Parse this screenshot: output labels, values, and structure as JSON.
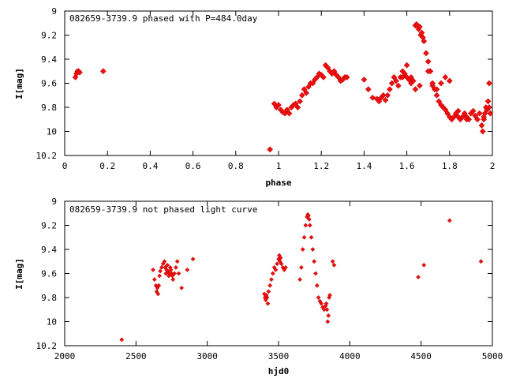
{
  "chart_data": [
    {
      "type": "scatter",
      "title": "082659-3739.9 phased with P=484.0day",
      "xlabel": "phase",
      "ylabel": "I[mag]",
      "xlim": [
        0,
        2
      ],
      "ylim": [
        10.2,
        9
      ],
      "y_inverted": true,
      "grid": false,
      "color": "#ee1111",
      "marker": "diamond-cross",
      "x_ticks": [
        "0",
        "0.2",
        "0.4",
        "0.6",
        "0.8",
        "1",
        "1.2",
        "1.4",
        "1.6",
        "1.8",
        "2"
      ],
      "y_ticks": [
        "9",
        "9.2",
        "9.4",
        "9.6",
        "9.8",
        "10",
        "10.2"
      ],
      "series": [
        {
          "x": [
            0.05,
            0.055,
            0.06,
            0.065,
            0.07,
            0.18,
            0.96,
            0.98,
            0.99,
            1.0,
            1.01,
            1.02,
            1.03,
            1.04,
            1.05,
            1.06,
            1.07,
            1.08,
            1.09,
            1.1,
            1.11,
            1.12,
            1.13,
            1.14,
            1.15,
            1.16,
            1.17,
            1.18,
            1.19,
            1.2,
            1.21,
            1.22,
            1.23,
            1.24,
            1.25,
            1.26,
            1.27,
            1.28,
            1.29,
            1.3,
            1.31,
            1.32,
            1.4,
            1.42,
            1.44,
            1.46,
            1.47,
            1.48,
            1.49,
            1.5,
            1.51,
            1.52,
            1.53,
            1.54,
            1.55,
            1.56,
            1.57,
            1.58,
            1.59,
            1.6,
            1.61,
            1.62,
            1.63,
            1.64,
            1.645,
            1.65,
            1.655,
            1.66,
            1.665,
            1.67,
            1.675,
            1.68,
            1.69,
            1.7,
            1.71,
            1.72,
            1.73,
            1.74,
            1.75,
            1.76,
            1.77,
            1.78,
            1.79,
            1.8,
            1.81,
            1.82,
            1.83,
            1.84,
            1.85,
            1.86,
            1.87,
            1.88,
            1.89,
            1.9,
            1.91,
            1.92,
            1.93,
            1.94,
            1.95,
            1.955,
            1.96,
            1.965,
            1.97,
            1.975,
            1.98,
            1.985,
            1.99,
            1.58,
            1.6,
            1.62,
            1.64,
            1.66,
            1.7,
            1.72,
            1.74,
            1.76,
            1.78,
            1.8,
            1.84,
            1.88,
            1.92,
            1.96,
            1.985
          ],
          "y": [
            9.55,
            9.52,
            9.5,
            9.5,
            9.51,
            9.5,
            10.15,
            9.77,
            9.8,
            9.78,
            9.82,
            9.84,
            9.85,
            9.82,
            9.85,
            9.8,
            9.78,
            9.77,
            9.8,
            9.75,
            9.7,
            9.65,
            9.68,
            9.63,
            9.6,
            9.6,
            9.57,
            9.55,
            9.52,
            9.53,
            9.55,
            9.45,
            9.47,
            9.5,
            9.52,
            9.5,
            9.53,
            9.55,
            9.58,
            9.57,
            9.55,
            9.55,
            9.57,
            9.65,
            9.72,
            9.73,
            9.75,
            9.72,
            9.7,
            9.74,
            9.7,
            9.65,
            9.6,
            9.55,
            9.58,
            9.62,
            9.55,
            9.5,
            9.52,
            9.55,
            9.57,
            9.55,
            9.58,
            9.12,
            9.11,
            9.12,
            9.15,
            9.13,
            9.2,
            9.18,
            9.22,
            9.25,
            9.35,
            9.42,
            9.5,
            9.6,
            9.65,
            9.7,
            9.75,
            9.78,
            9.8,
            9.82,
            9.85,
            9.88,
            9.9,
            9.88,
            9.85,
            9.88,
            9.9,
            9.88,
            9.85,
            9.88,
            9.9,
            9.85,
            9.83,
            9.87,
            9.9,
            9.85,
            9.95,
            10.0,
            9.9,
            9.85,
            9.8,
            9.82,
            9.75,
            9.8,
            9.85,
            9.55,
            9.45,
            9.6,
            9.65,
            9.62,
            9.5,
            9.62,
            9.65,
            9.6,
            9.55,
            9.58,
            9.83,
            9.9,
            9.87,
            9.88,
            9.6
          ]
        }
      ]
    },
    {
      "type": "scatter",
      "title": "082659-3739.9 not phased light curve",
      "xlabel": "hjd0",
      "ylabel": "I[mag]",
      "xlim": [
        2000,
        5000
      ],
      "ylim": [
        10.2,
        9
      ],
      "y_inverted": true,
      "grid": false,
      "color": "#ee1111",
      "marker": "diamond",
      "x_ticks": [
        "2000",
        "2500",
        "3000",
        "3500",
        "4000",
        "4500",
        "5000"
      ],
      "y_ticks": [
        "9",
        "9.2",
        "9.4",
        "9.6",
        "9.8",
        "10",
        "10.2"
      ],
      "series": [
        {
          "x": [
            2400,
            2620,
            2630,
            2640,
            2645,
            2650,
            2655,
            2660,
            2665,
            2670,
            2680,
            2690,
            2700,
            2705,
            2710,
            2715,
            2720,
            2725,
            2730,
            2735,
            2740,
            2745,
            2750,
            2755,
            2760,
            2770,
            2780,
            2790,
            2800,
            2820,
            2860,
            2900,
            3400,
            3405,
            3410,
            3415,
            3420,
            3425,
            3430,
            3440,
            3450,
            3460,
            3470,
            3480,
            3490,
            3500,
            3505,
            3510,
            3515,
            3520,
            3530,
            3540,
            3550,
            3650,
            3660,
            3670,
            3680,
            3690,
            3700,
            3705,
            3710,
            3715,
            3720,
            3730,
            3740,
            3750,
            3760,
            3770,
            3780,
            3790,
            3800,
            3810,
            3820,
            3830,
            3835,
            3840,
            3845,
            3850,
            3855,
            3860,
            3880,
            3890,
            4480,
            4520,
            4700,
            4920
          ],
          "y": [
            10.15,
            9.57,
            9.65,
            9.7,
            9.75,
            9.72,
            9.77,
            9.7,
            9.62,
            9.58,
            9.55,
            9.52,
            9.5,
            9.55,
            9.6,
            9.57,
            9.53,
            9.58,
            9.62,
            9.6,
            9.55,
            9.57,
            9.6,
            9.62,
            9.65,
            9.6,
            9.55,
            9.5,
            9.6,
            9.72,
            9.57,
            9.48,
            9.77,
            9.8,
            9.82,
            9.78,
            9.8,
            9.85,
            9.75,
            9.7,
            9.65,
            9.6,
            9.55,
            9.57,
            9.52,
            9.48,
            9.45,
            9.5,
            9.47,
            9.52,
            9.55,
            9.57,
            9.55,
            9.65,
            9.55,
            9.4,
            9.3,
            9.2,
            9.13,
            9.11,
            9.12,
            9.15,
            9.2,
            9.3,
            9.4,
            9.5,
            9.6,
            9.7,
            9.8,
            9.83,
            9.85,
            9.88,
            9.9,
            9.87,
            9.85,
            9.9,
            10.0,
            9.95,
            9.8,
            9.78,
            9.5,
            9.53,
            9.63,
            9.53,
            9.16,
            9.5
          ]
        }
      ]
    }
  ]
}
